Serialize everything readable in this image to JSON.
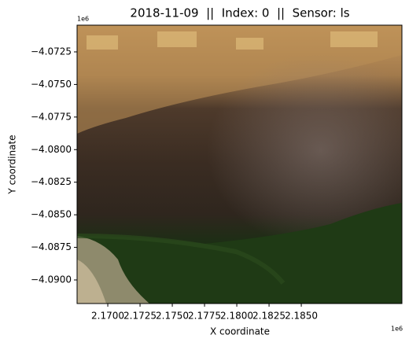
{
  "chart_data": {
    "type": "image",
    "title": "2018-11-09  ||  Index: 0  ||  Sensor: ls",
    "xlabel": "X coordinate",
    "ylabel": "Y coordinate",
    "x_offset": "1e6",
    "y_offset": "1e6",
    "xlim": [
      2167620,
      2192800
    ],
    "ylim": [
      -4091810,
      -4070450
    ],
    "xticks": [
      {
        "value": 2170000,
        "label": "2.1700"
      },
      {
        "value": 2172500,
        "label": "2.1725"
      },
      {
        "value": 2175000,
        "label": "2.1750"
      },
      {
        "value": 2177500,
        "label": "2.1775"
      },
      {
        "value": 2180000,
        "label": "2.1800"
      },
      {
        "value": 2182500,
        "label": "2.1825"
      },
      {
        "value": 2185000,
        "label": "2.1850"
      }
    ],
    "yticks": [
      {
        "value": -4072500,
        "label": "−4.0725"
      },
      {
        "value": -4075000,
        "label": "−4.0750"
      },
      {
        "value": -4077500,
        "label": "−4.0775"
      },
      {
        "value": -4080000,
        "label": "−4.0800"
      },
      {
        "value": -4082500,
        "label": "−4.0825"
      },
      {
        "value": -4085000,
        "label": "−4.0850"
      },
      {
        "value": -4087500,
        "label": "−4.0875"
      },
      {
        "value": -4090000,
        "label": "−4.0900"
      }
    ]
  }
}
